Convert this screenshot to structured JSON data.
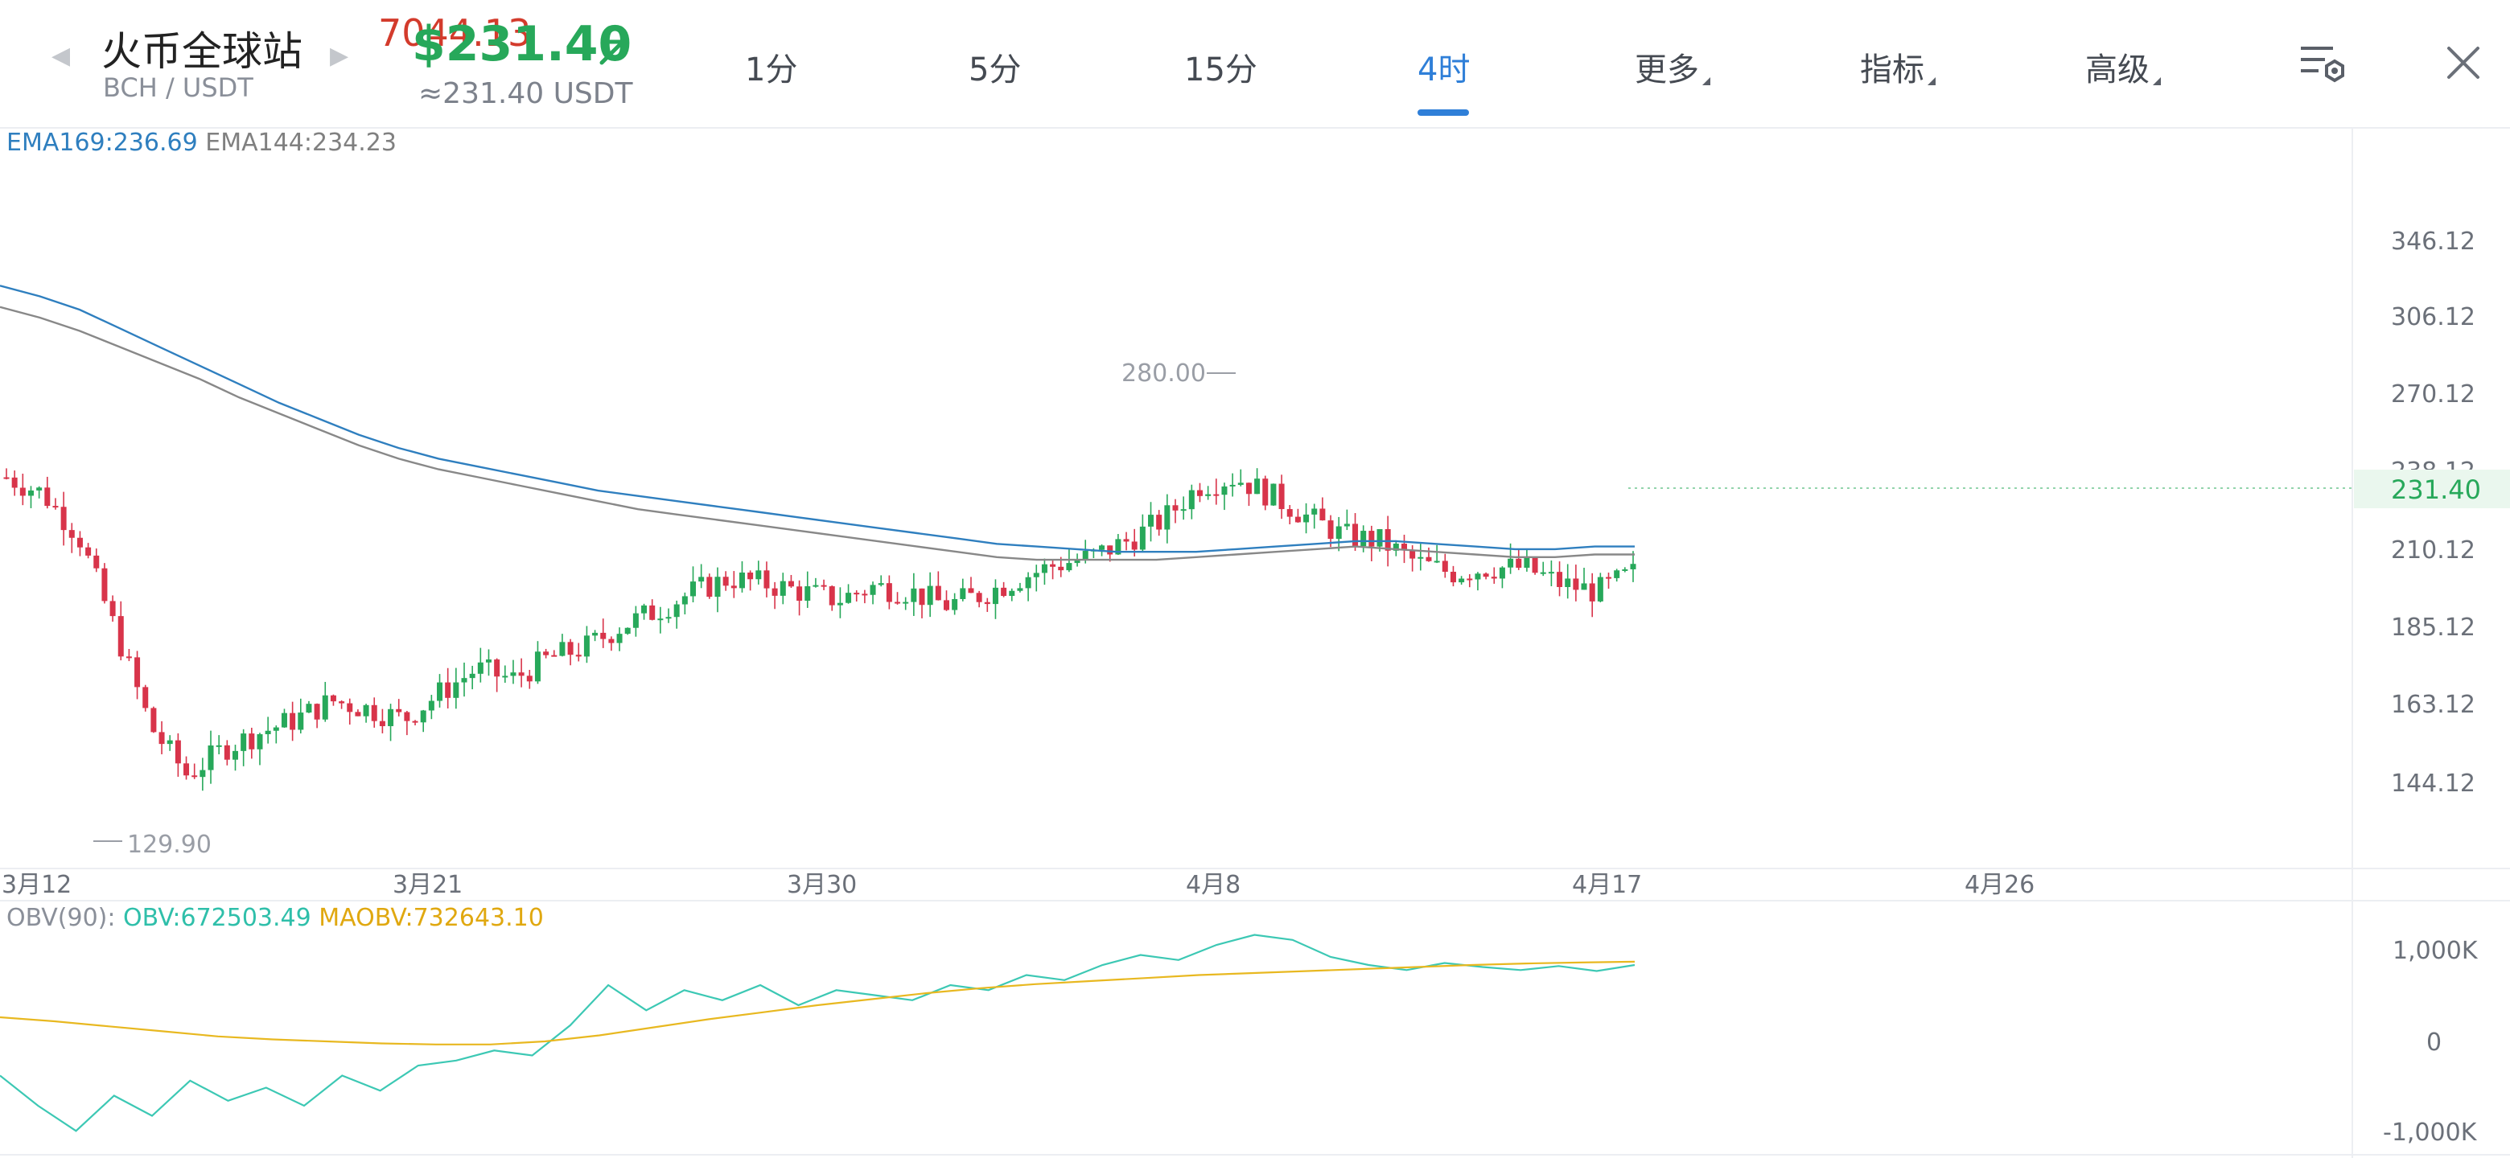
{
  "header": {
    "nav_prev": "◀",
    "nav_next": "▶",
    "title": "火币全球站",
    "pair": "BCH / USDT",
    "overlay_number": "7044.13",
    "price": "$231.40",
    "price_approx": "≈231.40 USDT",
    "tabs": [
      {
        "label": "1分",
        "active": false
      },
      {
        "label": "5分",
        "active": false
      },
      {
        "label": "15分",
        "active": false
      },
      {
        "label": "4时",
        "active": true
      },
      {
        "label": "更多",
        "active": false,
        "dropdown": true
      },
      {
        "label": "指标",
        "active": false,
        "dropdown": true
      },
      {
        "label": "高级",
        "active": false,
        "dropdown": true
      }
    ],
    "settings_icon": "chart-settings-icon",
    "close_icon": "close-icon"
  },
  "colors": {
    "up": "#27a85a",
    "down": "#d8344a",
    "ema169": "#2f7fbf",
    "ema144": "#888888",
    "obv": "#3cc8b4",
    "maobv": "#e8b820",
    "accent": "#2f7fd8"
  },
  "legend": {
    "ema169": "EMA169:236.69",
    "ema144": "EMA144:234.23",
    "obv_title": "OBV(90):",
    "obv": "OBV:672503.49",
    "maobv": "MAOBV:732643.10"
  },
  "chart_data": [
    {
      "type": "candlestick",
      "title": "",
      "price_axis_labels": [
        "346.12",
        "306.12",
        "270.12",
        "238.12",
        "210.12",
        "185.12",
        "163.12",
        "144.12"
      ],
      "current_price": "231.40",
      "max_marker": "280.00",
      "min_marker": "129.90",
      "date_labels": [
        "3月12",
        "3月21",
        "3月30",
        "4月8",
        "4月17",
        "4月26"
      ],
      "ylim": [
        118,
        390
      ],
      "series": [
        {
          "name": "EMA169",
          "values": [
            334,
            330,
            325,
            318,
            311,
            304,
            297,
            290,
            284,
            278,
            273,
            269,
            266,
            263,
            260,
            257,
            255,
            253,
            251,
            249,
            247,
            245,
            243,
            241,
            239,
            237,
            236,
            235,
            234,
            234,
            234,
            235,
            236,
            237,
            238,
            238,
            237,
            236,
            235,
            235,
            236,
            236
          ]
        },
        {
          "name": "EMA144",
          "values": [
            326,
            322,
            317,
            311,
            305,
            299,
            292,
            286,
            280,
            274,
            269,
            265,
            262,
            259,
            256,
            253,
            250,
            248,
            246,
            244,
            242,
            240,
            238,
            236,
            234,
            232,
            231,
            231,
            231,
            231,
            232,
            233,
            234,
            235,
            236,
            235,
            234,
            233,
            232,
            232,
            233,
            233
          ]
        }
      ],
      "sample_closes": [
        262,
        256,
        240,
        205,
        168,
        150,
        160,
        166,
        171,
        178,
        175,
        171,
        181,
        190,
        186,
        194,
        198,
        206,
        212,
        219,
        224,
        222,
        219,
        216,
        221,
        219,
        214,
        218,
        224,
        229,
        232,
        238,
        246,
        259,
        262,
        255,
        247,
        240,
        238,
        230,
        226,
        228,
        228,
        222,
        219,
        226
      ]
    },
    {
      "type": "line",
      "title": "",
      "y_axis_labels": [
        "1,000K",
        "0",
        "-1,000K"
      ],
      "ylim": [
        -1100000,
        1100000
      ],
      "series": [
        {
          "name": "OBV",
          "values": [
            -400000,
            -700000,
            -950000,
            -600000,
            -800000,
            -450000,
            -650000,
            -520000,
            -700000,
            -400000,
            -550000,
            -300000,
            -250000,
            -150000,
            -200000,
            100000,
            500000,
            250000,
            450000,
            350000,
            500000,
            300000,
            450000,
            400000,
            350000,
            500000,
            450000,
            600000,
            550000,
            700000,
            800000,
            750000,
            900000,
            1000000,
            950000,
            780000,
            700000,
            650000,
            720000,
            680000,
            650000,
            690000,
            640000,
            700000
          ]
        },
        {
          "name": "MAOBV",
          "values": [
            180000,
            140000,
            90000,
            40000,
            -10000,
            -40000,
            -60000,
            -80000,
            -90000,
            -90000,
            -60000,
            0,
            80000,
            160000,
            230000,
            300000,
            360000,
            420000,
            470000,
            510000,
            540000,
            570000,
            600000,
            620000,
            640000,
            660000,
            680000,
            700000,
            715000,
            725000,
            732643
          ]
        }
      ]
    }
  ]
}
